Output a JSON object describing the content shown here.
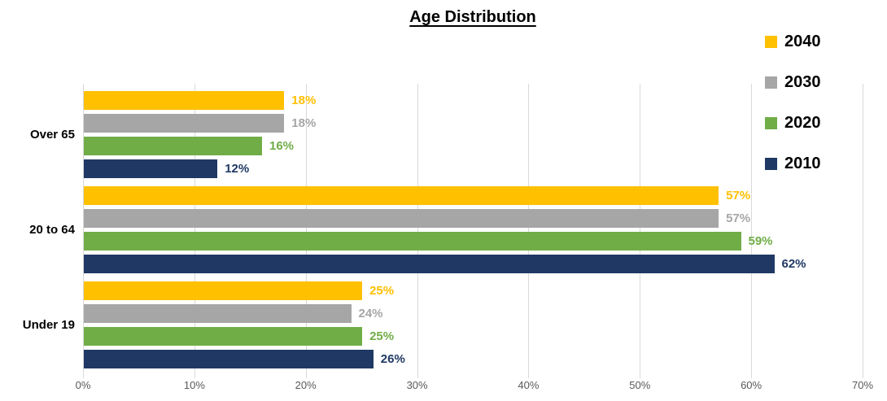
{
  "chart": {
    "title": "Age Distribution"
  },
  "chart_data": {
    "type": "bar",
    "orientation": "horizontal",
    "title": "Age Distribution",
    "categories": [
      "Over 65",
      "20 to 64",
      "Under 19"
    ],
    "series": [
      {
        "name": "2040",
        "color": "#FFC000",
        "values": [
          18,
          57,
          25
        ]
      },
      {
        "name": "2030",
        "color": "#A6A6A6",
        "values": [
          18,
          57,
          24
        ]
      },
      {
        "name": "2020",
        "color": "#70AD47",
        "values": [
          16,
          59,
          25
        ]
      },
      {
        "name": "2010",
        "color": "#1F3864",
        "values": [
          12,
          62,
          26
        ]
      }
    ],
    "value_suffix": "%",
    "data_labels": true,
    "xlim": [
      0,
      70
    ],
    "x_ticks": [
      "0%",
      "10%",
      "20%",
      "30%",
      "40%",
      "50%",
      "60%",
      "70%"
    ],
    "grid": true,
    "legend_position": "right"
  }
}
